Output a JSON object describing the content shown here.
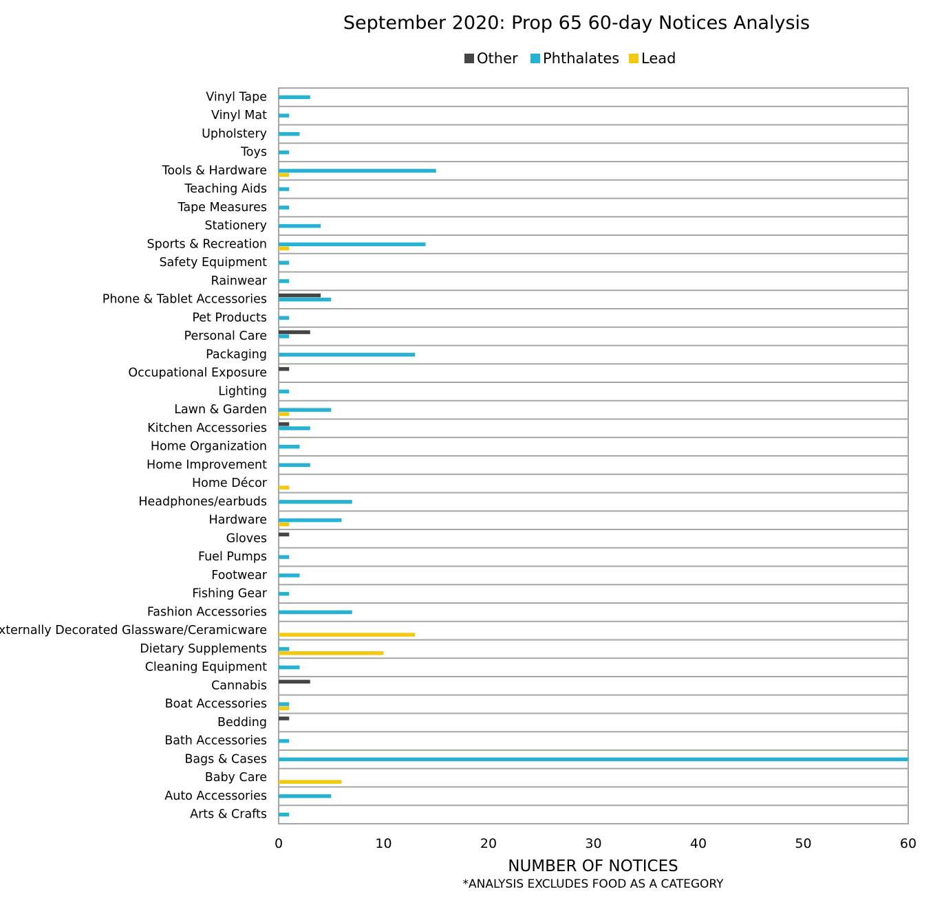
{
  "chart_data": {
    "type": "bar",
    "orientation": "horizontal",
    "title": "September 2020: Prop 65 60-day Notices Analysis",
    "xlabel": "NUMBER OF NOTICES",
    "note": "*ANALYSIS EXCLUDES FOOD AS A CATEGORY",
    "xlim": [
      0,
      60
    ],
    "xticks": [
      0,
      10,
      20,
      30,
      40,
      50,
      60
    ],
    "legend_position": "top",
    "grid": true,
    "categories": [
      "Vinyl Tape",
      "Vinyl Mat",
      "Upholstery",
      "Toys",
      "Tools & Hardware",
      "Teaching Aids",
      "Tape Measures",
      "Stationery",
      "Sports & Recreation",
      "Safety Equipment",
      "Rainwear",
      "Phone & Tablet Accessories",
      "Pet Products",
      "Personal Care",
      "Packaging",
      "Occupational Exposure",
      "Lighting",
      "Lawn & Garden",
      "Kitchen Accessories",
      "Home Organization",
      "Home Improvement",
      "Home Décor",
      "Headphones/earbuds",
      "Hardware",
      "Gloves",
      "Fuel Pumps",
      "Footwear",
      "Fishing Gear",
      "Fashion Accessories",
      "Externally Decorated Glassware/Ceramicware",
      "Dietary Supplements",
      "Cleaning Equipment",
      "Cannabis",
      "Boat Accessories",
      "Bedding",
      "Bath Accessories",
      "Bags & Cases",
      "Baby Care",
      "Auto Accessories",
      "Arts & Crafts"
    ],
    "series": [
      {
        "name": "Other",
        "color": "#454545",
        "values": [
          0,
          0,
          0,
          0,
          0,
          0,
          0,
          0,
          0,
          0,
          0,
          4,
          0,
          3,
          0,
          1,
          0,
          0,
          1,
          0,
          0,
          0,
          0,
          0,
          1,
          0,
          0,
          0,
          0,
          0,
          0,
          0,
          3,
          0,
          1,
          0,
          0,
          0,
          0,
          0
        ]
      },
      {
        "name": "Phthalates",
        "color": "#25b2d3",
        "values": [
          3,
          1,
          2,
          1,
          15,
          1,
          1,
          4,
          14,
          1,
          1,
          5,
          1,
          1,
          13,
          0,
          1,
          5,
          3,
          2,
          3,
          0,
          7,
          6,
          0,
          1,
          2,
          1,
          7,
          0,
          1,
          2,
          0,
          1,
          0,
          1,
          60,
          0,
          5,
          1
        ]
      },
      {
        "name": "Lead",
        "color": "#f2c811",
        "values": [
          0,
          0,
          0,
          0,
          1,
          0,
          0,
          0,
          1,
          0,
          0,
          0,
          0,
          0,
          0,
          0,
          0,
          1,
          0,
          0,
          0,
          1,
          0,
          1,
          0,
          0,
          0,
          0,
          0,
          13,
          10,
          0,
          0,
          1,
          0,
          0,
          0,
          6,
          0,
          0
        ]
      }
    ]
  }
}
